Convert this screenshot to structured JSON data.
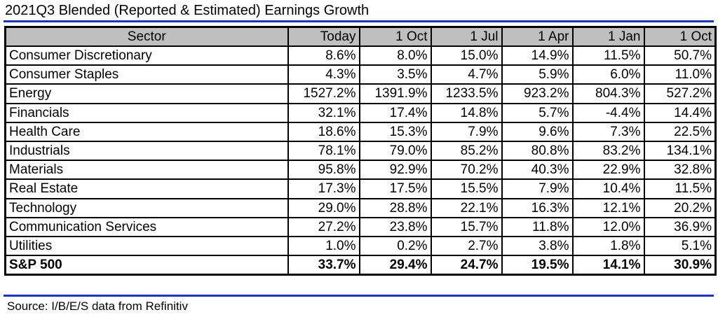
{
  "title": "2021Q3 Blended (Reported & Estimated) Earnings Growth",
  "accent_color": "#1533d6",
  "header_bg": "#bfbfbf",
  "table": {
    "columns": [
      "Sector",
      "Today",
      "1 Oct",
      "1 Jul",
      "1 Apr",
      "1 Jan",
      "1 Oct"
    ],
    "rows": [
      [
        "Consumer Discretionary",
        "8.6%",
        "8.0%",
        "15.0%",
        "14.9%",
        "11.5%",
        "50.7%"
      ],
      [
        "Consumer Staples",
        "4.3%",
        "3.5%",
        "4.7%",
        "5.9%",
        "6.0%",
        "11.0%"
      ],
      [
        "Energy",
        "1527.2%",
        "1391.9%",
        "1233.5%",
        "923.2%",
        "804.3%",
        "527.2%"
      ],
      [
        "Financials",
        "32.1%",
        "17.4%",
        "14.8%",
        "5.7%",
        "-4.4%",
        "14.4%"
      ],
      [
        "Health Care",
        "18.6%",
        "15.3%",
        "7.9%",
        "9.6%",
        "7.3%",
        "22.5%"
      ],
      [
        "Industrials",
        "78.1%",
        "79.0%",
        "85.2%",
        "80.8%",
        "83.2%",
        "134.1%"
      ],
      [
        "Materials",
        "95.8%",
        "92.9%",
        "70.2%",
        "40.3%",
        "22.9%",
        "32.8%"
      ],
      [
        "Real Estate",
        "17.3%",
        "17.5%",
        "15.5%",
        "7.9%",
        "10.4%",
        "11.5%"
      ],
      [
        "Technology",
        "29.0%",
        "28.8%",
        "22.1%",
        "16.3%",
        "12.1%",
        "20.2%"
      ],
      [
        "Communication Services",
        "27.2%",
        "23.8%",
        "15.7%",
        "11.8%",
        "12.0%",
        "36.9%"
      ],
      [
        "Utilities",
        "1.0%",
        "0.2%",
        "2.7%",
        "3.8%",
        "1.8%",
        "5.1%"
      ]
    ],
    "total": [
      "S&P 500",
      "33.7%",
      "29.4%",
      "24.7%",
      "19.5%",
      "14.1%",
      "30.9%"
    ]
  },
  "source": "Source: I/B/E/S data from Refinitiv"
}
